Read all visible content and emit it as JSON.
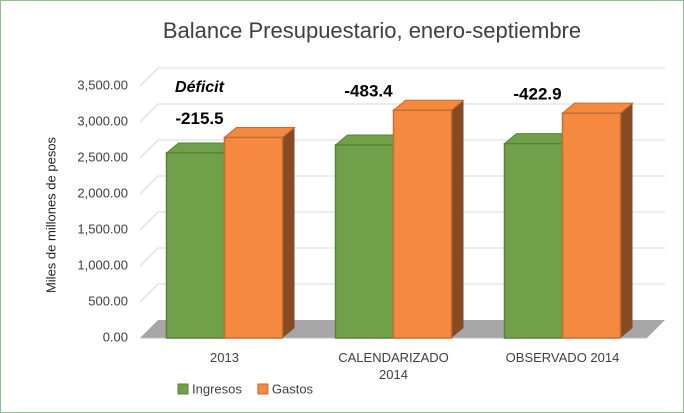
{
  "chart_data": {
    "type": "bar3d",
    "title": "Balance Presupuestario, enero-septiembre",
    "y_label": "Miles de millones de pesos",
    "categories": [
      "2013",
      "CALENDARIZADO 2014",
      "OBSERVADO 2014"
    ],
    "series": [
      {
        "name": "Ingresos",
        "color": "#70a04a",
        "values": [
          2570,
          2680,
          2700
        ]
      },
      {
        "name": "Gastos",
        "color": "#f4893f",
        "values": [
          2785.5,
          3163.4,
          3122.9
        ]
      }
    ],
    "annotation_title": "Déficit",
    "deficit": [
      -215.5,
      -483.4,
      -422.9
    ],
    "ylim": [
      0,
      3500
    ],
    "yticks": [
      {
        "value": 0,
        "label": "0.00"
      },
      {
        "value": 500,
        "label": "500.00"
      },
      {
        "value": 1000,
        "label": "1,000.00"
      },
      {
        "value": 1500,
        "label": "1,500.00"
      },
      {
        "value": 2000,
        "label": "2,000.00"
      },
      {
        "value": 2500,
        "label": "2,500.00"
      },
      {
        "value": 3000,
        "label": "3,000.00"
      },
      {
        "value": 3500,
        "label": "3,500.00"
      }
    ],
    "grid": true,
    "legend": "bottom-left"
  }
}
